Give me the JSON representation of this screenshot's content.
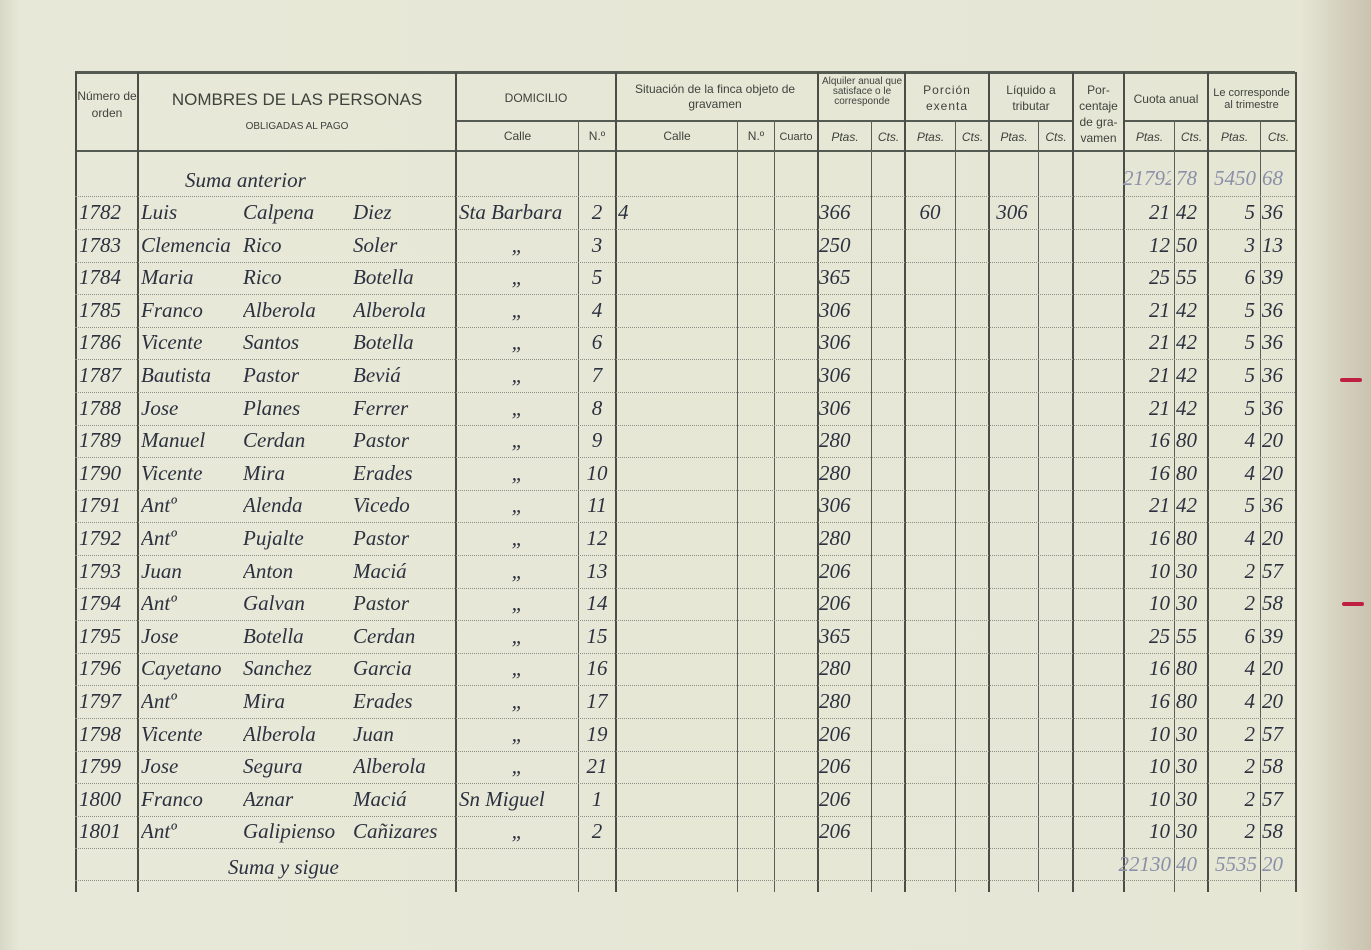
{
  "header": {
    "numero_orden": "Número de orden",
    "nombres_title": "NOMBRES DE LAS PERSONAS",
    "nombres_sub": "OBLIGADAS AL PAGO",
    "domicilio": "DOMICILIO",
    "domicilio_calle": "Calle",
    "domicilio_num": "N.º",
    "situacion": "Situación de la finca objeto de gravamen",
    "situacion_calle": "Calle",
    "situacion_num": "N.º",
    "situacion_cuarto": "Cuarto",
    "alquiler": "Alquiler anual que satisface o le corresponde",
    "porcion": "Porción exenta",
    "liquido": "Líquido a tributar",
    "porcentaje": "Por- centaje de gra- vamen",
    "cuota": "Cuota anual",
    "trimestre": "Le corresponde al trimestre",
    "ptas": "Ptas.",
    "cts": "Cts."
  },
  "suma_anterior": {
    "label": "Suma anterior",
    "cuota_ptas": "21792",
    "cuota_cts": "78",
    "trim_ptas": "5450",
    "trim_cts": "68"
  },
  "rows": [
    {
      "n": "1782",
      "name": "Luis",
      "ap1": "Calpena",
      "ap2": "Diez",
      "calle": "Sta Barbara",
      "num": "2",
      "sit": "4",
      "alq": "366",
      "porc": "60",
      "liq": "306",
      "cp": "21",
      "cc": "42",
      "tp": "5",
      "tc": "36"
    },
    {
      "n": "1783",
      "name": "Clemencia",
      "ap1": "Rico",
      "ap2": "Soler",
      "calle": "„",
      "num": "3",
      "sit": "",
      "alq": "250",
      "porc": "",
      "liq": "",
      "cp": "12",
      "cc": "50",
      "tp": "3",
      "tc": "13"
    },
    {
      "n": "1784",
      "name": "Maria",
      "ap1": "Rico",
      "ap2": "Botella",
      "calle": "„",
      "num": "5",
      "sit": "",
      "alq": "365",
      "porc": "",
      "liq": "",
      "cp": "25",
      "cc": "55",
      "tp": "6",
      "tc": "39"
    },
    {
      "n": "1785",
      "name": "Franco",
      "ap1": "Alberola",
      "ap2": "Alberola",
      "calle": "„",
      "num": "4",
      "sit": "",
      "alq": "306",
      "porc": "",
      "liq": "",
      "cp": "21",
      "cc": "42",
      "tp": "5",
      "tc": "36"
    },
    {
      "n": "1786",
      "name": "Vicente",
      "ap1": "Santos",
      "ap2": "Botella",
      "calle": "„",
      "num": "6",
      "sit": "",
      "alq": "306",
      "porc": "",
      "liq": "",
      "cp": "21",
      "cc": "42",
      "tp": "5",
      "tc": "36"
    },
    {
      "n": "1787",
      "name": "Bautista",
      "ap1": "Pastor",
      "ap2": "Beviá",
      "calle": "„",
      "num": "7",
      "sit": "",
      "alq": "306",
      "porc": "",
      "liq": "",
      "cp": "21",
      "cc": "42",
      "tp": "5",
      "tc": "36"
    },
    {
      "n": "1788",
      "name": "Jose",
      "ap1": "Planes",
      "ap2": "Ferrer",
      "calle": "„",
      "num": "8",
      "sit": "",
      "alq": "306",
      "porc": "",
      "liq": "",
      "cp": "21",
      "cc": "42",
      "tp": "5",
      "tc": "36"
    },
    {
      "n": "1789",
      "name": "Manuel",
      "ap1": "Cerdan",
      "ap2": "Pastor",
      "calle": "„",
      "num": "9",
      "sit": "",
      "alq": "280",
      "porc": "",
      "liq": "",
      "cp": "16",
      "cc": "80",
      "tp": "4",
      "tc": "20"
    },
    {
      "n": "1790",
      "name": "Vicente",
      "ap1": "Mira",
      "ap2": "Erades",
      "calle": "„",
      "num": "10",
      "sit": "",
      "alq": "280",
      "porc": "",
      "liq": "",
      "cp": "16",
      "cc": "80",
      "tp": "4",
      "tc": "20"
    },
    {
      "n": "1791",
      "name": "Antº",
      "ap1": "Alenda",
      "ap2": "Vicedo",
      "calle": "„",
      "num": "11",
      "sit": "",
      "alq": "306",
      "porc": "",
      "liq": "",
      "cp": "21",
      "cc": "42",
      "tp": "5",
      "tc": "36"
    },
    {
      "n": "1792",
      "name": "Antº",
      "ap1": "Pujalte",
      "ap2": "Pastor",
      "calle": "„",
      "num": "12",
      "sit": "",
      "alq": "280",
      "porc": "",
      "liq": "",
      "cp": "16",
      "cc": "80",
      "tp": "4",
      "tc": "20"
    },
    {
      "n": "1793",
      "name": "Juan",
      "ap1": "Anton",
      "ap2": "Maciá",
      "calle": "„",
      "num": "13",
      "sit": "",
      "alq": "206",
      "porc": "",
      "liq": "",
      "cp": "10",
      "cc": "30",
      "tp": "2",
      "tc": "57"
    },
    {
      "n": "1794",
      "name": "Antº",
      "ap1": "Galvan",
      "ap2": "Pastor",
      "calle": "„",
      "num": "14",
      "sit": "",
      "alq": "206",
      "porc": "",
      "liq": "",
      "cp": "10",
      "cc": "30",
      "tp": "2",
      "tc": "58"
    },
    {
      "n": "1795",
      "name": "Jose",
      "ap1": "Botella",
      "ap2": "Cerdan",
      "calle": "„",
      "num": "15",
      "sit": "",
      "alq": "365",
      "porc": "",
      "liq": "",
      "cp": "25",
      "cc": "55",
      "tp": "6",
      "tc": "39"
    },
    {
      "n": "1796",
      "name": "Cayetano",
      "ap1": "Sanchez",
      "ap2": "Garcia",
      "calle": "„",
      "num": "16",
      "sit": "",
      "alq": "280",
      "porc": "",
      "liq": "",
      "cp": "16",
      "cc": "80",
      "tp": "4",
      "tc": "20"
    },
    {
      "n": "1797",
      "name": "Antº",
      "ap1": "Mira",
      "ap2": "Erades",
      "calle": "„",
      "num": "17",
      "sit": "",
      "alq": "280",
      "porc": "",
      "liq": "",
      "cp": "16",
      "cc": "80",
      "tp": "4",
      "tc": "20"
    },
    {
      "n": "1798",
      "name": "Vicente",
      "ap1": "Alberola",
      "ap2": "Juan",
      "calle": "„",
      "num": "19",
      "sit": "",
      "alq": "206",
      "porc": "",
      "liq": "",
      "cp": "10",
      "cc": "30",
      "tp": "2",
      "tc": "57"
    },
    {
      "n": "1799",
      "name": "Jose",
      "ap1": "Segura",
      "ap2": "Alberola",
      "calle": "„",
      "num": "21",
      "sit": "",
      "alq": "206",
      "porc": "",
      "liq": "",
      "cp": "10",
      "cc": "30",
      "tp": "2",
      "tc": "58"
    },
    {
      "n": "1800",
      "name": "Franco",
      "ap1": "Aznar",
      "ap2": "Maciá",
      "calle": "Sn Miguel",
      "num": "1",
      "sit": "",
      "alq": "206",
      "porc": "",
      "liq": "",
      "cp": "10",
      "cc": "30",
      "tp": "2",
      "tc": "57"
    },
    {
      "n": "1801",
      "name": "Antº",
      "ap1": "Galipienso",
      "ap2": "Cañizares",
      "calle": "„",
      "num": "2",
      "sit": "",
      "alq": "206",
      "porc": "",
      "liq": "",
      "cp": "10",
      "cc": "30",
      "tp": "2",
      "tc": "58"
    }
  ],
  "suma_y_sigue": {
    "label": "Suma y sigue",
    "cuota_ptas": "22130",
    "cuota_cts": "40",
    "trim_ptas": "5535",
    "trim_cts": "20"
  }
}
